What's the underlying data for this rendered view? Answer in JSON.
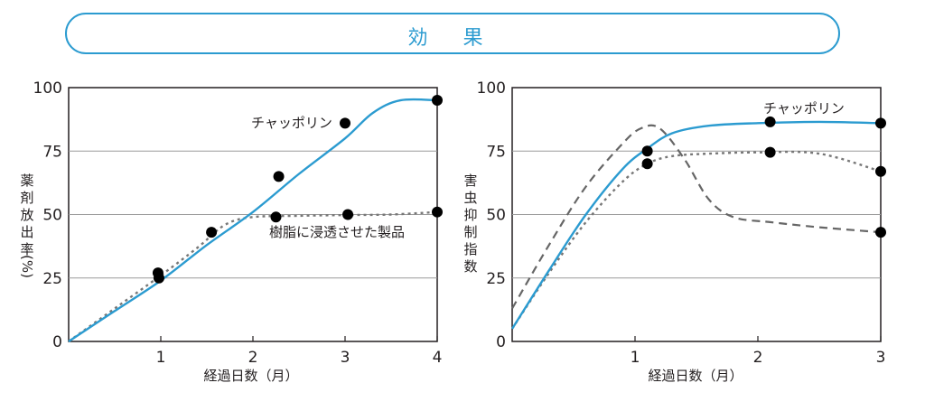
{
  "header": {
    "title": "効 果"
  },
  "colors": {
    "accent": "#2b9bd0",
    "dashed": "#666666",
    "dotted": "#777777",
    "grid": "#9a9a9a"
  },
  "chart_data": [
    {
      "type": "line",
      "xlabel": "経過日数（月）",
      "ylabel_chars": [
        "薬",
        "剤",
        "放",
        "出",
        "率",
        "(%)"
      ],
      "xlim": [
        0,
        4
      ],
      "ylim": [
        0,
        100
      ],
      "xticks": [
        "1",
        "2",
        "3",
        "4"
      ],
      "yticks": [
        "0",
        "25",
        "50",
        "75",
        "100"
      ],
      "series": [
        {
          "name": "チャッポリン",
          "style": "solid",
          "curve": [
            [
              0,
              0
            ],
            [
              0.5,
              12
            ],
            [
              1,
              24
            ],
            [
              1.5,
              38
            ],
            [
              2,
              51
            ],
            [
              2.5,
              66
            ],
            [
              3,
              80
            ],
            [
              3.3,
              90
            ],
            [
              3.6,
              95
            ],
            [
              4,
              95
            ]
          ],
          "markers": [
            [
              0.98,
              25
            ],
            [
              2.28,
              65
            ],
            [
              3.0,
              86
            ],
            [
              4.0,
              95
            ]
          ]
        },
        {
          "name": "樹脂に浸透させた製品",
          "style": "dotted",
          "curve": [
            [
              0,
              0
            ],
            [
              0.5,
              13
            ],
            [
              1,
              26
            ],
            [
              1.4,
              37
            ],
            [
              1.7,
              46
            ],
            [
              2,
              49
            ],
            [
              2.5,
              49.5
            ],
            [
              3,
              49.8
            ],
            [
              3.5,
              50
            ],
            [
              4,
              51
            ]
          ],
          "markers": [
            [
              0.97,
              27
            ],
            [
              1.55,
              43
            ],
            [
              2.25,
              49
            ],
            [
              3.03,
              50
            ],
            [
              4.0,
              51
            ]
          ]
        }
      ],
      "annotations": [
        "チャッポリン",
        "樹脂に浸透させた製品"
      ]
    },
    {
      "type": "line",
      "xlabel": "経過日数（月）",
      "ylabel_chars": [
        "害",
        "虫",
        "抑",
        "制",
        "指",
        "数"
      ],
      "xlim": [
        0,
        3
      ],
      "ylim": [
        0,
        100
      ],
      "xticks": [
        "1",
        "2",
        "3"
      ],
      "yticks": [
        "0",
        "25",
        "50",
        "75",
        "100"
      ],
      "series": [
        {
          "name": "チャッポリン",
          "style": "solid",
          "curve": [
            [
              0,
              5
            ],
            [
              0.3,
              28
            ],
            [
              0.6,
              50
            ],
            [
              0.9,
              68
            ],
            [
              1.1,
              76
            ],
            [
              1.3,
              82
            ],
            [
              1.6,
              85
            ],
            [
              2,
              86
            ],
            [
              2.5,
              86.5
            ],
            [
              3,
              86
            ]
          ],
          "markers": [
            [
              1.1,
              75
            ],
            [
              2.1,
              86.5
            ],
            [
              3.0,
              86
            ]
          ]
        },
        {
          "name": "dashed",
          "style": "dashed",
          "curve": [
            [
              0,
              13
            ],
            [
              0.3,
              38
            ],
            [
              0.6,
              61
            ],
            [
              0.9,
              78
            ],
            [
              1.05,
              84
            ],
            [
              1.2,
              84
            ],
            [
              1.4,
              72
            ],
            [
              1.6,
              56
            ],
            [
              1.8,
              49
            ],
            [
              2.1,
              47
            ],
            [
              2.5,
              45
            ],
            [
              3,
              43
            ]
          ],
          "markers": [
            [
              3.0,
              43
            ]
          ]
        },
        {
          "name": "dotted",
          "style": "dotted",
          "curve": [
            [
              0,
              5
            ],
            [
              0.3,
              27
            ],
            [
              0.6,
              47
            ],
            [
              0.9,
              63
            ],
            [
              1.1,
              70
            ],
            [
              1.3,
              73
            ],
            [
              1.6,
              74
            ],
            [
              2,
              74.5
            ],
            [
              2.5,
              74
            ],
            [
              3,
              67
            ]
          ],
          "markers": [
            [
              1.1,
              70
            ],
            [
              2.1,
              74.5
            ],
            [
              3.0,
              67
            ]
          ]
        }
      ],
      "annotations": [
        "チャッポリン"
      ]
    }
  ]
}
